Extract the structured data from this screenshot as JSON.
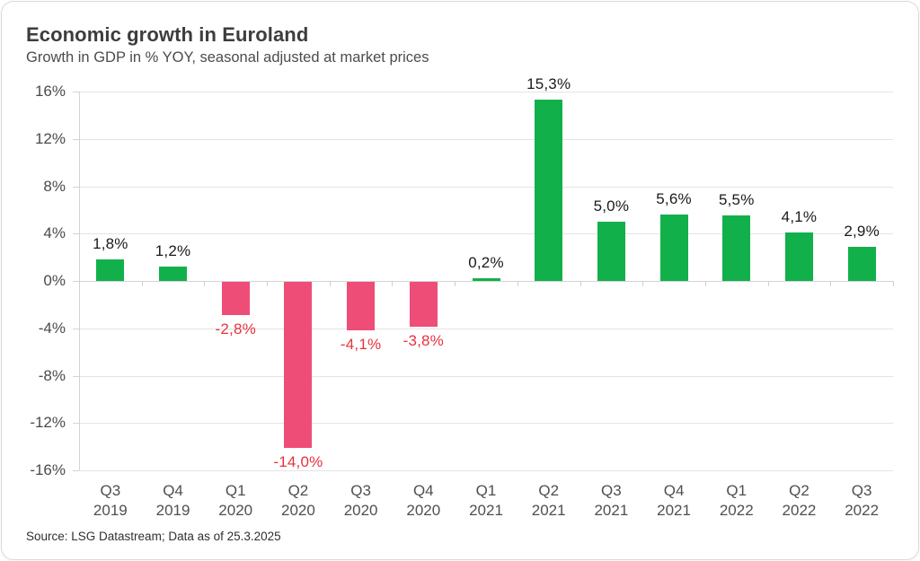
{
  "card": {
    "title": "Economic growth in Euroland",
    "subtitle": "Growth in GDP in % YOY, seasonal adjusted at market prices",
    "source": "Source: LSG Datastream; Data as of 25.3.2025"
  },
  "colors": {
    "positive_bar": "#12b04b",
    "negative_bar": "#ee4d78",
    "positive_label": "#1a1a1a",
    "negative_label": "#e8323c",
    "gridline": "#e4e4e4",
    "axis_line": "#d4d4d4",
    "axis_text": "#4a4a4a"
  },
  "chart_data": {
    "type": "bar",
    "title": "Economic growth in Euroland",
    "subtitle": "Growth in GDP in % YOY, seasonal adjusted at market prices",
    "categories": [
      {
        "quarter": "Q3",
        "year": "2019"
      },
      {
        "quarter": "Q4",
        "year": "2019"
      },
      {
        "quarter": "Q1",
        "year": "2020"
      },
      {
        "quarter": "Q2",
        "year": "2020"
      },
      {
        "quarter": "Q3",
        "year": "2020"
      },
      {
        "quarter": "Q4",
        "year": "2020"
      },
      {
        "quarter": "Q1",
        "year": "2021"
      },
      {
        "quarter": "Q2",
        "year": "2021"
      },
      {
        "quarter": "Q3",
        "year": "2021"
      },
      {
        "quarter": "Q4",
        "year": "2021"
      },
      {
        "quarter": "Q1",
        "year": "2022"
      },
      {
        "quarter": "Q2",
        "year": "2022"
      },
      {
        "quarter": "Q3",
        "year": "2022"
      }
    ],
    "values": [
      1.8,
      1.2,
      -2.8,
      -14.0,
      -4.1,
      -3.8,
      0.2,
      15.3,
      5.0,
      5.6,
      5.5,
      4.1,
      2.9
    ],
    "value_labels": [
      "1,8%",
      "1,2%",
      "-2,8%",
      "-14,0%",
      "-4,1%",
      "-3,8%",
      "0,2%",
      "15,3%",
      "5,0%",
      "5,6%",
      "5,5%",
      "4,1%",
      "2,9%"
    ],
    "ylim": [
      -16,
      16
    ],
    "y_ticks": [
      16,
      12,
      8,
      4,
      0,
      -4,
      -8,
      -12,
      -16
    ],
    "y_tick_labels": [
      "16%",
      "12%",
      "8%",
      "4%",
      "0%",
      "-4%",
      "-8%",
      "-12%",
      "-16%"
    ],
    "xlabel": "",
    "ylabel": "",
    "grid": true,
    "legend": false
  }
}
